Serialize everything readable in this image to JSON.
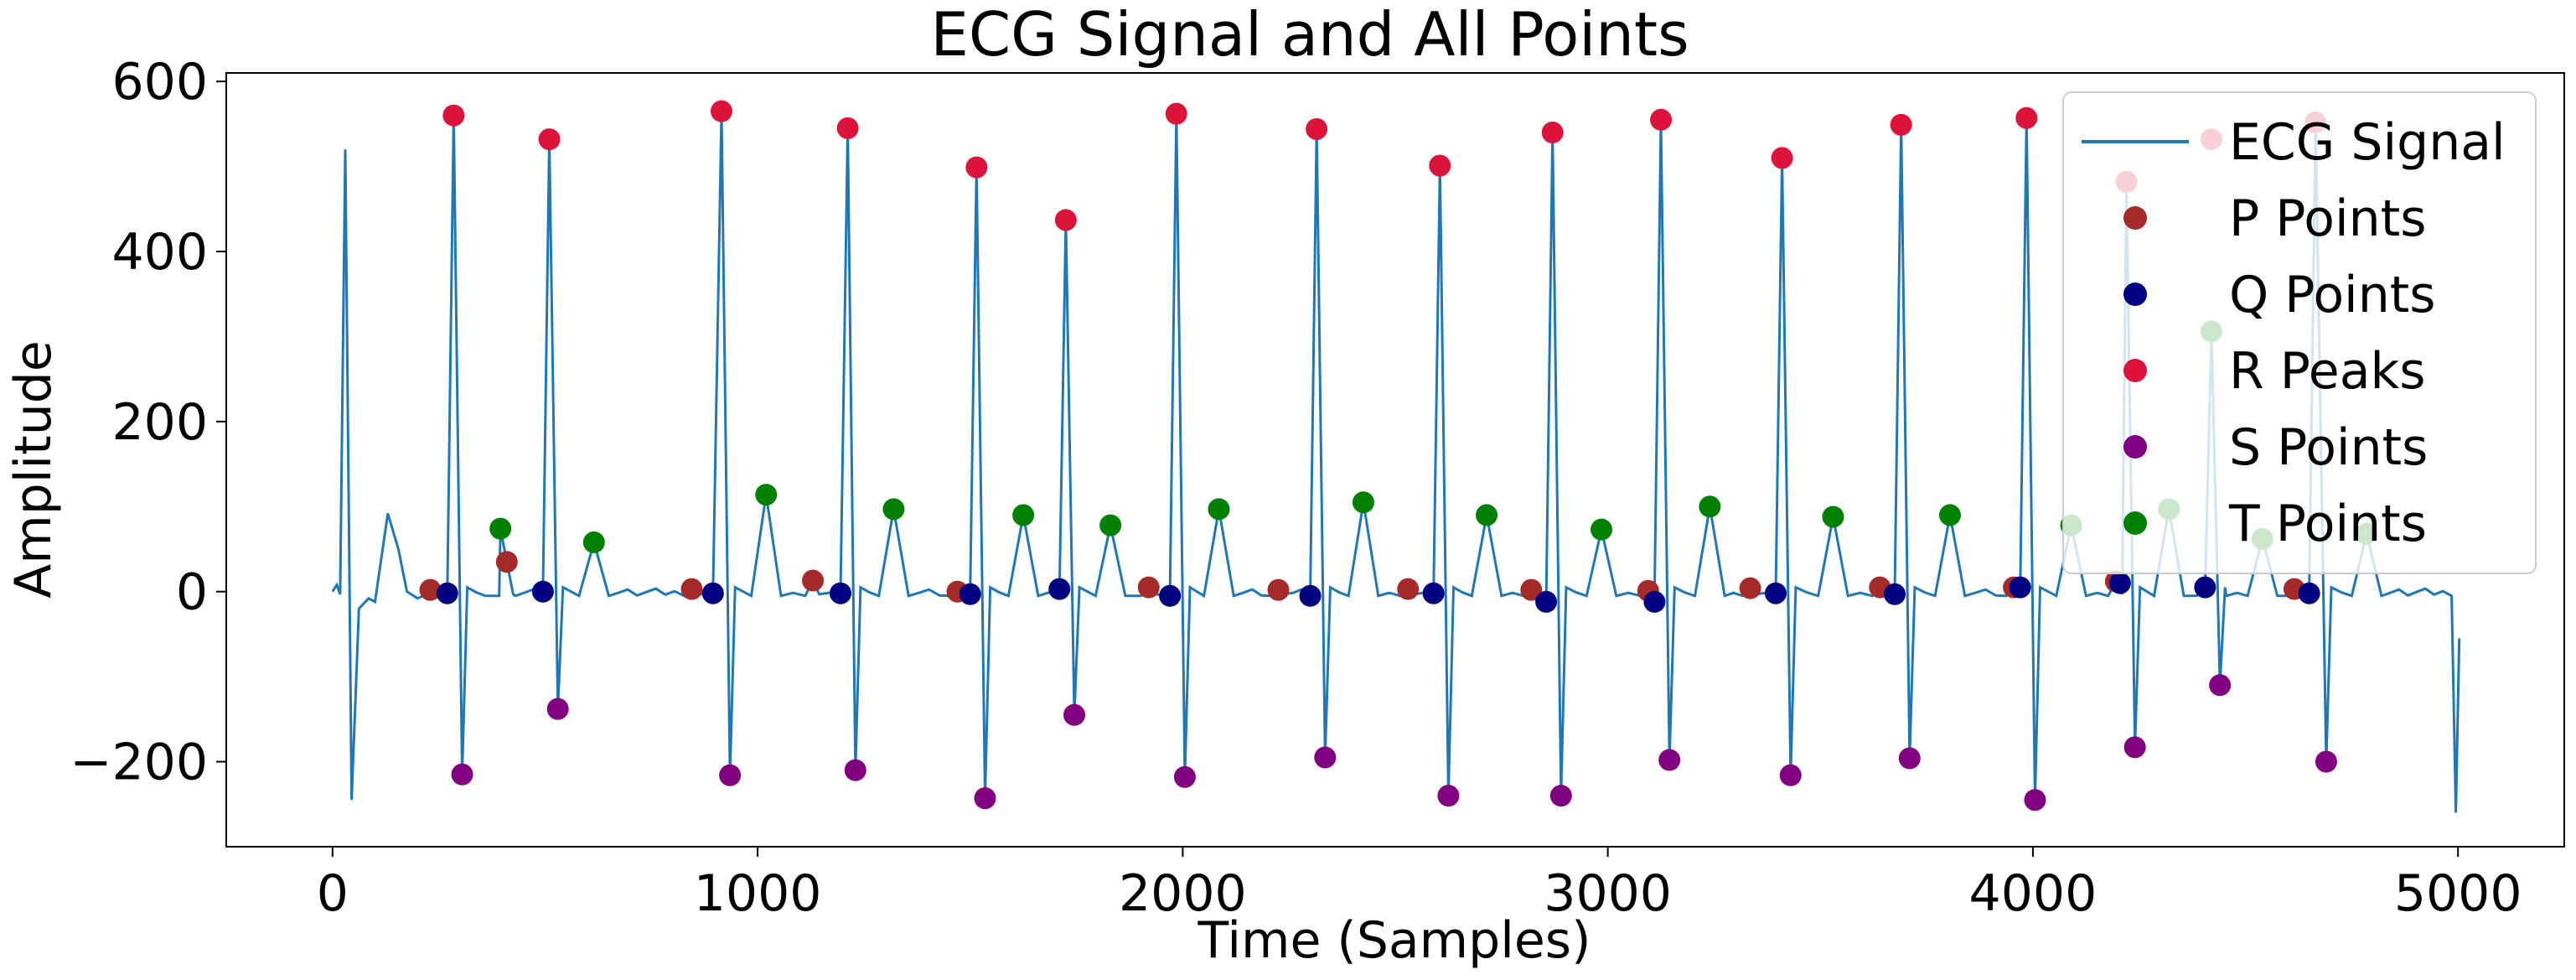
{
  "chart_data": {
    "type": "line",
    "title": "ECG Signal and All Points",
    "xlabel": "Time (Samples)",
    "ylabel": "Amplitude",
    "xlim": [
      -250,
      5250
    ],
    "ylim": [
      -300,
      610
    ],
    "xticks": [
      0,
      1000,
      2000,
      3000,
      4000,
      5000
    ],
    "xtick_labels": [
      "0",
      "1000",
      "2000",
      "3000",
      "4000",
      "5000"
    ],
    "yticks": [
      -200,
      0,
      200,
      400,
      600
    ],
    "ytick_labels": [
      "−200",
      "0",
      "200",
      "400",
      "600"
    ],
    "grid": false,
    "legend_position": "top-right",
    "r_peaks": [
      {
        "x": 285,
        "y": 560
      },
      {
        "x": 510,
        "y": 532
      },
      {
        "x": 915,
        "y": 565
      },
      {
        "x": 1212,
        "y": 545
      },
      {
        "x": 1515,
        "y": 499
      },
      {
        "x": 1725,
        "y": 437
      },
      {
        "x": 1985,
        "y": 562
      },
      {
        "x": 2315,
        "y": 544
      },
      {
        "x": 2605,
        "y": 501
      },
      {
        "x": 2870,
        "y": 540
      },
      {
        "x": 3125,
        "y": 555
      },
      {
        "x": 3410,
        "y": 510
      },
      {
        "x": 3690,
        "y": 549
      },
      {
        "x": 3985,
        "y": 557
      },
      {
        "x": 4220,
        "y": 482
      },
      {
        "x": 4420,
        "y": 532
      },
      {
        "x": 4665,
        "y": 552
      }
    ],
    "p_points": [
      {
        "x": 230,
        "y": 2
      },
      {
        "x": 410,
        "y": 35
      },
      {
        "x": 845,
        "y": 3
      },
      {
        "x": 1130,
        "y": 13
      },
      {
        "x": 1470,
        "y": 0
      },
      {
        "x": 1920,
        "y": 5
      },
      {
        "x": 2225,
        "y": 2
      },
      {
        "x": 2530,
        "y": 3
      },
      {
        "x": 2820,
        "y": 2
      },
      {
        "x": 3095,
        "y": 1
      },
      {
        "x": 3335,
        "y": 4
      },
      {
        "x": 3640,
        "y": 5
      },
      {
        "x": 3955,
        "y": 5
      },
      {
        "x": 4195,
        "y": 12
      },
      {
        "x": 4615,
        "y": 3
      }
    ],
    "q_points": [
      {
        "x": 270,
        "y": -2
      },
      {
        "x": 495,
        "y": 0
      },
      {
        "x": 895,
        "y": -2
      },
      {
        "x": 1195,
        "y": -2
      },
      {
        "x": 1500,
        "y": -3
      },
      {
        "x": 1710,
        "y": 3
      },
      {
        "x": 1970,
        "y": -5
      },
      {
        "x": 2300,
        "y": -5
      },
      {
        "x": 2590,
        "y": -2
      },
      {
        "x": 2855,
        "y": -12
      },
      {
        "x": 3110,
        "y": -12
      },
      {
        "x": 3395,
        "y": -2
      },
      {
        "x": 3675,
        "y": -3
      },
      {
        "x": 3970,
        "y": 5
      },
      {
        "x": 4205,
        "y": 10
      },
      {
        "x": 4405,
        "y": 5
      },
      {
        "x": 4650,
        "y": -2
      }
    ],
    "s_points": [
      {
        "x": 305,
        "y": -215
      },
      {
        "x": 530,
        "y": -138
      },
      {
        "x": 935,
        "y": -216
      },
      {
        "x": 1230,
        "y": -210
      },
      {
        "x": 1535,
        "y": -243
      },
      {
        "x": 1745,
        "y": -145
      },
      {
        "x": 2005,
        "y": -218
      },
      {
        "x": 2335,
        "y": -195
      },
      {
        "x": 2625,
        "y": -240
      },
      {
        "x": 2890,
        "y": -240
      },
      {
        "x": 3145,
        "y": -198
      },
      {
        "x": 3430,
        "y": -216
      },
      {
        "x": 3710,
        "y": -196
      },
      {
        "x": 4005,
        "y": -245
      },
      {
        "x": 4240,
        "y": -183
      },
      {
        "x": 4440,
        "y": -110
      },
      {
        "x": 4690,
        "y": -200
      }
    ],
    "t_points": [
      {
        "x": 395,
        "y": 74
      },
      {
        "x": 615,
        "y": 58
      },
      {
        "x": 1020,
        "y": 114
      },
      {
        "x": 1320,
        "y": 97
      },
      {
        "x": 1625,
        "y": 90
      },
      {
        "x": 1830,
        "y": 78
      },
      {
        "x": 2085,
        "y": 97
      },
      {
        "x": 2425,
        "y": 105
      },
      {
        "x": 2715,
        "y": 90
      },
      {
        "x": 2985,
        "y": 73
      },
      {
        "x": 3240,
        "y": 100
      },
      {
        "x": 3530,
        "y": 88
      },
      {
        "x": 3805,
        "y": 90
      },
      {
        "x": 4090,
        "y": 78
      },
      {
        "x": 4320,
        "y": 97
      },
      {
        "x": 4420,
        "y": 306
      },
      {
        "x": 4540,
        "y": 62
      },
      {
        "x": 4785,
        "y": 68
      }
    ],
    "series": [
      {
        "name": "ECG Signal",
        "kind": "line",
        "color": "#1f77b4"
      },
      {
        "name": "P Points",
        "kind": "scatter",
        "color": "#a52a2a"
      },
      {
        "name": "Q Points",
        "kind": "scatter",
        "color": "#000080"
      },
      {
        "name": "R Peaks",
        "kind": "scatter",
        "color": "#dc143c"
      },
      {
        "name": "S Points",
        "kind": "scatter",
        "color": "#800080"
      },
      {
        "name": "T Points",
        "kind": "scatter",
        "color": "#008000"
      }
    ]
  }
}
